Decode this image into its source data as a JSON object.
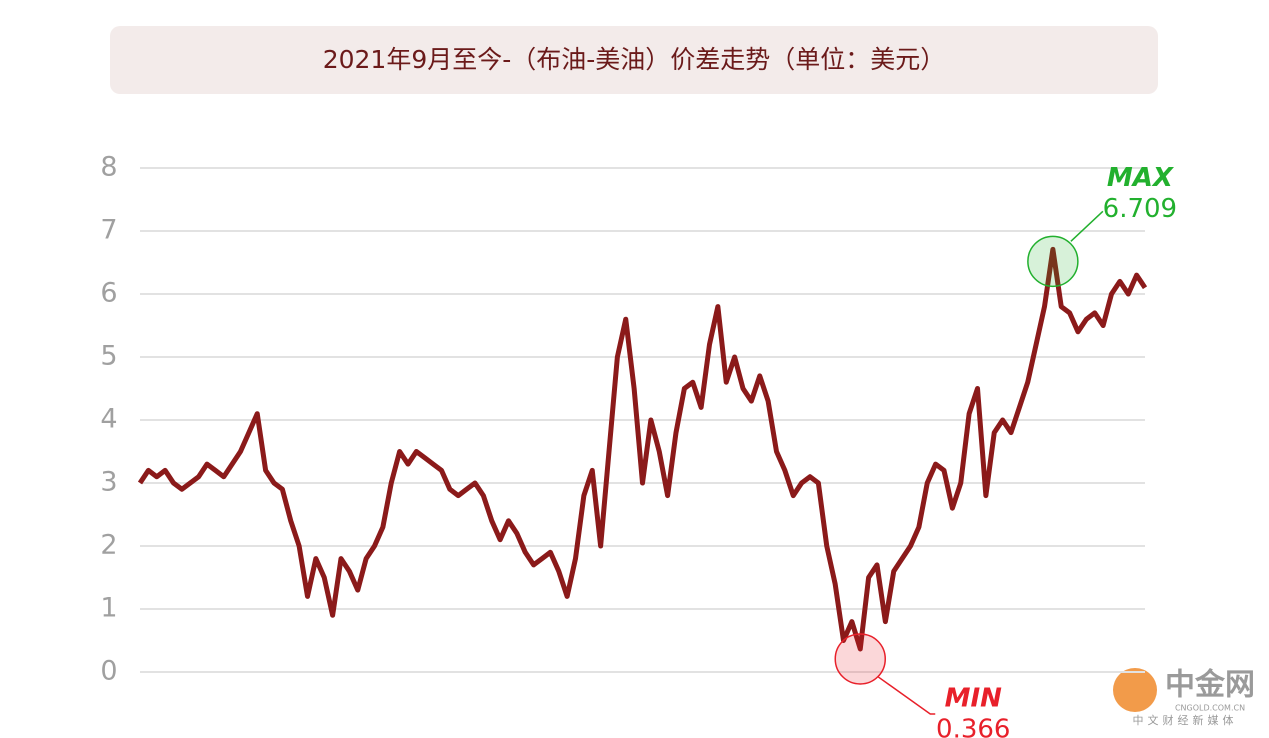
{
  "chart_data": {
    "type": "line",
    "title": "2021年9月至今-（布油-美油）价差走势（单位：美元）",
    "series": [
      {
        "color": "#8b1a1a",
        "values": [
          3.0,
          3.2,
          3.1,
          3.2,
          3.0,
          2.9,
          3.0,
          3.1,
          3.3,
          3.2,
          3.1,
          3.3,
          3.5,
          3.8,
          4.1,
          3.2,
          3.0,
          2.9,
          2.4,
          2.0,
          1.2,
          1.8,
          1.5,
          0.9,
          1.8,
          1.6,
          1.3,
          1.8,
          2.0,
          2.3,
          3.0,
          3.5,
          3.3,
          3.5,
          3.4,
          3.3,
          3.2,
          2.9,
          2.8,
          2.9,
          3.0,
          2.8,
          2.4,
          2.1,
          2.4,
          2.2,
          1.9,
          1.7,
          1.8,
          1.9,
          1.6,
          1.2,
          1.8,
          2.8,
          3.2,
          2.0,
          3.5,
          5.0,
          5.6,
          4.5,
          3.0,
          4.0,
          3.5,
          2.8,
          3.8,
          4.5,
          4.6,
          4.2,
          5.2,
          5.8,
          4.6,
          5.0,
          4.5,
          4.3,
          4.7,
          4.3,
          3.5,
          3.2,
          2.8,
          3.0,
          3.1,
          3.0,
          2.0,
          1.4,
          0.5,
          0.8,
          0.366,
          1.5,
          1.7,
          0.8,
          1.6,
          1.8,
          2.0,
          2.3,
          3.0,
          3.3,
          3.2,
          2.6,
          3.0,
          4.1,
          4.5,
          2.8,
          3.8,
          4.0,
          3.8,
          4.2,
          4.6,
          5.2,
          5.8,
          6.709,
          5.8,
          5.7,
          5.4,
          5.6,
          5.7,
          5.5,
          6.0,
          6.2,
          6.0,
          6.3,
          6.1
        ]
      }
    ],
    "ylim": [
      0,
      8
    ],
    "yticks": [
      0,
      1,
      2,
      3,
      4,
      5,
      6,
      7,
      8
    ],
    "grid": true,
    "annotations": [
      {
        "label": "MAX",
        "value": 6.709,
        "value_label": "6.709",
        "color": "#22b02e"
      },
      {
        "label": "MIN",
        "value": 0.366,
        "value_label": "0.366",
        "color": "#e8202a"
      }
    ],
    "watermark": {
      "name": "中金网",
      "site": "CNGOLD.COM.CN",
      "slogan": "中文财经新媒体"
    }
  }
}
